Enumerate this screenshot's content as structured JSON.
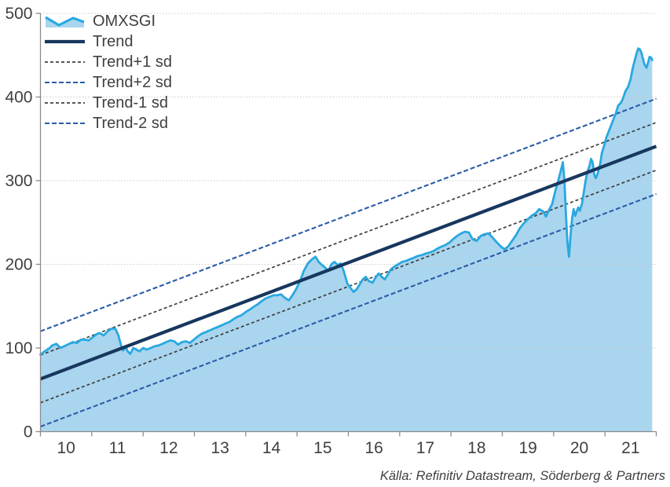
{
  "chart_data": {
    "type": "area",
    "series_name": "OMXSGI",
    "legend_position": "top-left",
    "grid": "horizontal-dotted",
    "x_axis": {
      "min": 2010,
      "max": 2022,
      "tick_every_years": 1,
      "tick_labels": [
        "10",
        "11",
        "12",
        "13",
        "14",
        "15",
        "16",
        "17",
        "18",
        "19",
        "20",
        "21"
      ]
    },
    "y_axis": {
      "min": 0,
      "max": 500,
      "step": 100,
      "tick_labels": [
        "0",
        "100",
        "200",
        "300",
        "400",
        "500"
      ]
    },
    "trend": {
      "label": "Trend",
      "start_year": 2010,
      "start_value": 63,
      "end_year": 2022,
      "end_value": 341
    },
    "sd_bands": [
      {
        "label": "Trend+1 sd",
        "offset": 28.5,
        "style": "gray-dashed"
      },
      {
        "label": "Trend+2 sd",
        "offset": 57,
        "style": "blue-dashed"
      },
      {
        "label": "Trend-1 sd",
        "offset": -28.5,
        "style": "gray-dashed"
      },
      {
        "label": "Trend-2 sd",
        "offset": -57,
        "style": "blue-dashed"
      }
    ],
    "omxsgi": {
      "points": [
        [
          2010.0,
          92
        ],
        [
          2010.08,
          96
        ],
        [
          2010.16,
          99
        ],
        [
          2010.23,
          103
        ],
        [
          2010.31,
          105
        ],
        [
          2010.39,
          100
        ],
        [
          2010.46,
          102
        ],
        [
          2010.56,
          105
        ],
        [
          2010.63,
          107
        ],
        [
          2010.71,
          106
        ],
        [
          2010.79,
          110
        ],
        [
          2010.86,
          110
        ],
        [
          2010.94,
          109
        ],
        [
          2011.0,
          112
        ],
        [
          2011.08,
          116
        ],
        [
          2011.15,
          118
        ],
        [
          2011.23,
          115
        ],
        [
          2011.31,
          120
        ],
        [
          2011.38,
          123
        ],
        [
          2011.46,
          123
        ],
        [
          2011.52,
          115
        ],
        [
          2011.57,
          103
        ],
        [
          2011.61,
          97
        ],
        [
          2011.66,
          101
        ],
        [
          2011.7,
          96
        ],
        [
          2011.75,
          93
        ],
        [
          2011.81,
          100
        ],
        [
          2011.87,
          98
        ],
        [
          2011.93,
          96
        ],
        [
          2012.0,
          100
        ],
        [
          2012.07,
          98
        ],
        [
          2012.15,
          100
        ],
        [
          2012.22,
          102
        ],
        [
          2012.3,
          103
        ],
        [
          2012.38,
          105
        ],
        [
          2012.45,
          107
        ],
        [
          2012.53,
          109
        ],
        [
          2012.61,
          108
        ],
        [
          2012.68,
          104
        ],
        [
          2012.76,
          107
        ],
        [
          2012.84,
          108
        ],
        [
          2012.91,
          106
        ],
        [
          2012.99,
          110
        ],
        [
          2013.07,
          114
        ],
        [
          2013.14,
          117
        ],
        [
          2013.22,
          119
        ],
        [
          2013.3,
          121
        ],
        [
          2013.37,
          123
        ],
        [
          2013.45,
          125
        ],
        [
          2013.53,
          127
        ],
        [
          2013.6,
          129
        ],
        [
          2013.68,
          131
        ],
        [
          2013.75,
          134
        ],
        [
          2013.83,
          137
        ],
        [
          2013.91,
          139
        ],
        [
          2014.0,
          143
        ],
        [
          2014.08,
          146
        ],
        [
          2014.15,
          149
        ],
        [
          2014.23,
          152
        ],
        [
          2014.31,
          156
        ],
        [
          2014.38,
          159
        ],
        [
          2014.46,
          161
        ],
        [
          2014.54,
          163
        ],
        [
          2014.61,
          163
        ],
        [
          2014.69,
          164
        ],
        [
          2014.76,
          160
        ],
        [
          2014.84,
          157
        ],
        [
          2014.9,
          162
        ],
        [
          2014.98,
          170
        ],
        [
          2015.06,
          180
        ],
        [
          2015.13,
          192
        ],
        [
          2015.21,
          201
        ],
        [
          2015.29,
          206
        ],
        [
          2015.36,
          209
        ],
        [
          2015.42,
          203
        ],
        [
          2015.49,
          199
        ],
        [
          2015.55,
          196
        ],
        [
          2015.61,
          192
        ],
        [
          2015.67,
          200
        ],
        [
          2015.73,
          203
        ],
        [
          2015.79,
          199
        ],
        [
          2015.85,
          201
        ],
        [
          2015.91,
          192
        ],
        [
          2015.98,
          177
        ],
        [
          2016.04,
          172
        ],
        [
          2016.1,
          167
        ],
        [
          2016.16,
          170
        ],
        [
          2016.22,
          176
        ],
        [
          2016.28,
          182
        ],
        [
          2016.34,
          185
        ],
        [
          2016.4,
          180
        ],
        [
          2016.47,
          178
        ],
        [
          2016.53,
          184
        ],
        [
          2016.59,
          189
        ],
        [
          2016.65,
          185
        ],
        [
          2016.71,
          182
        ],
        [
          2016.77,
          188
        ],
        [
          2016.83,
          194
        ],
        [
          2016.89,
          197
        ],
        [
          2016.97,
          200
        ],
        [
          2017.05,
          203
        ],
        [
          2017.12,
          204
        ],
        [
          2017.2,
          206
        ],
        [
          2017.28,
          208
        ],
        [
          2017.35,
          210
        ],
        [
          2017.43,
          211
        ],
        [
          2017.51,
          213
        ],
        [
          2017.58,
          214
        ],
        [
          2017.66,
          216
        ],
        [
          2017.74,
          219
        ],
        [
          2017.81,
          221
        ],
        [
          2017.89,
          223
        ],
        [
          2017.97,
          226
        ],
        [
          2018.04,
          230
        ],
        [
          2018.12,
          234
        ],
        [
          2018.2,
          237
        ],
        [
          2018.27,
          239
        ],
        [
          2018.35,
          238
        ],
        [
          2018.42,
          230
        ],
        [
          2018.5,
          228
        ],
        [
          2018.58,
          234
        ],
        [
          2018.65,
          236
        ],
        [
          2018.73,
          237
        ],
        [
          2018.81,
          232
        ],
        [
          2018.88,
          227
        ],
        [
          2018.96,
          222
        ],
        [
          2019.04,
          218
        ],
        [
          2019.11,
          221
        ],
        [
          2019.19,
          228
        ],
        [
          2019.27,
          235
        ],
        [
          2019.34,
          243
        ],
        [
          2019.42,
          249
        ],
        [
          2019.5,
          254
        ],
        [
          2019.57,
          258
        ],
        [
          2019.65,
          261
        ],
        [
          2019.72,
          266
        ],
        [
          2019.8,
          263
        ],
        [
          2019.85,
          257
        ],
        [
          2019.91,
          265
        ],
        [
          2019.97,
          272
        ],
        [
          2020.03,
          287
        ],
        [
          2020.09,
          300
        ],
        [
          2020.14,
          312
        ],
        [
          2020.18,
          322
        ],
        [
          2020.21,
          300
        ],
        [
          2020.24,
          260
        ],
        [
          2020.27,
          225
        ],
        [
          2020.3,
          209
        ],
        [
          2020.33,
          235
        ],
        [
          2020.36,
          255
        ],
        [
          2020.39,
          266
        ],
        [
          2020.42,
          258
        ],
        [
          2020.45,
          263
        ],
        [
          2020.48,
          268
        ],
        [
          2020.51,
          264
        ],
        [
          2020.55,
          272
        ],
        [
          2020.58,
          283
        ],
        [
          2020.61,
          295
        ],
        [
          2020.64,
          305
        ],
        [
          2020.67,
          313
        ],
        [
          2020.7,
          318
        ],
        [
          2020.73,
          326
        ],
        [
          2020.76,
          322
        ],
        [
          2020.79,
          308
        ],
        [
          2020.82,
          303
        ],
        [
          2020.85,
          307
        ],
        [
          2020.88,
          313
        ],
        [
          2020.91,
          321
        ],
        [
          2020.94,
          333
        ],
        [
          2020.99,
          343
        ],
        [
          2021.03,
          352
        ],
        [
          2021.08,
          360
        ],
        [
          2021.12,
          366
        ],
        [
          2021.17,
          374
        ],
        [
          2021.22,
          382
        ],
        [
          2021.26,
          390
        ],
        [
          2021.31,
          393
        ],
        [
          2021.35,
          398
        ],
        [
          2021.4,
          407
        ],
        [
          2021.45,
          412
        ],
        [
          2021.5,
          421
        ],
        [
          2021.54,
          434
        ],
        [
          2021.59,
          446
        ],
        [
          2021.62,
          453
        ],
        [
          2021.65,
          458
        ],
        [
          2021.68,
          457
        ],
        [
          2021.71,
          453
        ],
        [
          2021.74,
          446
        ],
        [
          2021.77,
          439
        ],
        [
          2021.81,
          435
        ],
        [
          2021.84,
          441
        ],
        [
          2021.87,
          448
        ],
        [
          2021.9,
          447
        ],
        [
          2021.92,
          444
        ]
      ]
    }
  },
  "source": {
    "text": "Källa: Refinitiv Datastream, Söderberg & Partners"
  },
  "colors": {
    "omxsgi_line": "#29A8E0",
    "omxsgi_fill": "#A9D5EF",
    "trend": "#17375E",
    "sd_gray": "#3F3F3F",
    "sd_blue": "#2B5CA8",
    "grid": "#C9C9C9",
    "axis": "#8C8C8C",
    "text": "#404040"
  }
}
